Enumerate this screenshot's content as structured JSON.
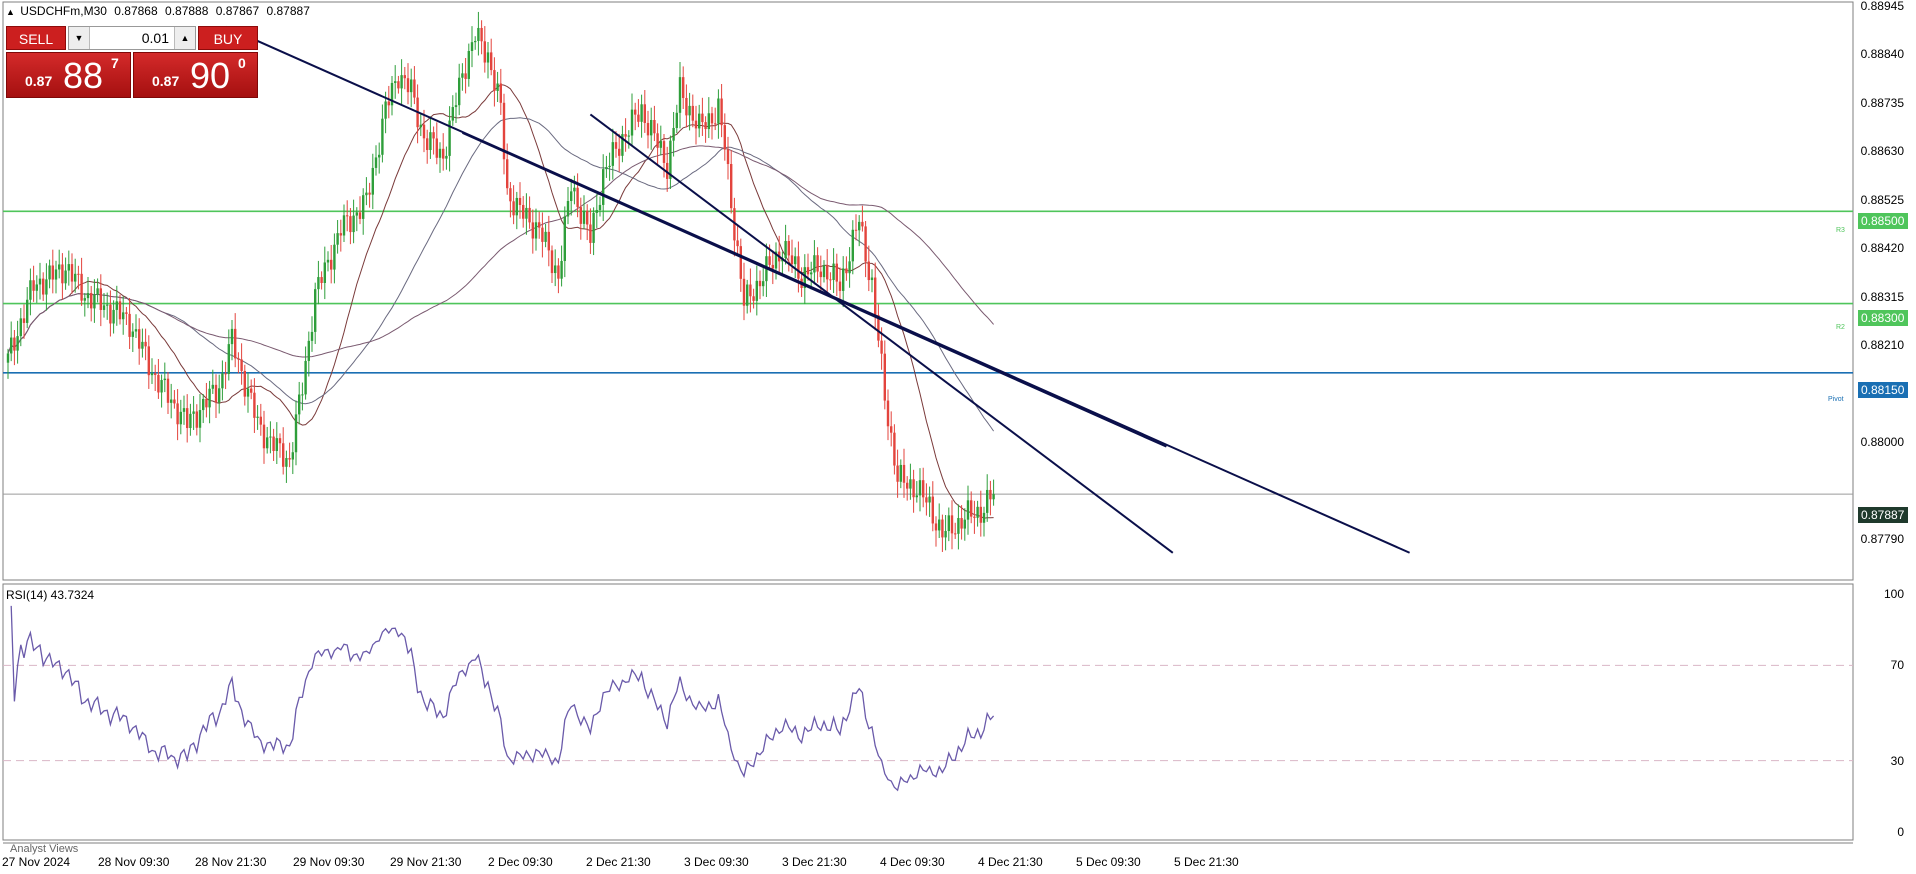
{
  "header": {
    "symbol": "USDCHFm,M30",
    "quotes": [
      "0.87868",
      "0.87888",
      "0.87867",
      "0.87887"
    ]
  },
  "trade_panel": {
    "sell_label": "SELL",
    "buy_label": "BUY",
    "lot": "0.01",
    "sell_prefix": "0.87",
    "sell_big": "88",
    "sell_sup": "7",
    "buy_prefix": "0.87",
    "buy_big": "90",
    "buy_sup": "0"
  },
  "rsi": {
    "label": "RSI(14) 43.7324"
  },
  "analyst_label": "Analyst Views",
  "chart_data": [
    {
      "type": "candlestick",
      "symbol": "USDCHFm",
      "timeframe": "M30",
      "ylim": [
        0.8774,
        0.88945
      ],
      "y_ticks": [
        "0.88945",
        "0.88840",
        "0.88735",
        "0.88630",
        "0.88525",
        "0.88420",
        "0.88315",
        "0.88210",
        "0.88105",
        "0.88000",
        "0.87790"
      ],
      "x_tick_labels": [
        "27 Nov 2024",
        "28 Nov 09:30",
        "28 Nov 21:30",
        "29 Nov 09:30",
        "29 Nov 21:30",
        "2 Dec 09:30",
        "2 Dec 21:30",
        "3 Dec 09:30",
        "3 Dec 21:30",
        "4 Dec 09:30",
        "4 Dec 21:30",
        "5 Dec 09:30",
        "5 Dec 21:30"
      ],
      "close_anchor_points": [
        [
          0,
          0.8818
        ],
        [
          4,
          0.8826
        ],
        [
          8,
          0.8834
        ],
        [
          14,
          0.8836
        ],
        [
          18,
          0.8838
        ],
        [
          24,
          0.8832
        ],
        [
          34,
          0.8828
        ],
        [
          38,
          0.8826
        ],
        [
          46,
          0.8814
        ],
        [
          56,
          0.8804
        ],
        [
          66,
          0.8812
        ],
        [
          70,
          0.8822
        ],
        [
          78,
          0.8804
        ],
        [
          82,
          0.88
        ],
        [
          88,
          0.8796
        ],
        [
          92,
          0.8812
        ],
        [
          96,
          0.8832
        ],
        [
          104,
          0.8846
        ],
        [
          112,
          0.8852
        ],
        [
          118,
          0.8872
        ],
        [
          122,
          0.888
        ],
        [
          126,
          0.8876
        ],
        [
          130,
          0.8866
        ],
        [
          136,
          0.8862
        ],
        [
          142,
          0.888
        ],
        [
          146,
          0.8888
        ],
        [
          150,
          0.8884
        ],
        [
          154,
          0.8872
        ],
        [
          156,
          0.8854
        ],
        [
          160,
          0.885
        ],
        [
          166,
          0.8846
        ],
        [
          172,
          0.8836
        ],
        [
          176,
          0.8856
        ],
        [
          182,
          0.8844
        ],
        [
          186,
          0.8858
        ],
        [
          192,
          0.8866
        ],
        [
          198,
          0.8872
        ],
        [
          206,
          0.886
        ],
        [
          210,
          0.8876
        ],
        [
          216,
          0.8868
        ],
        [
          222,
          0.8872
        ],
        [
          224,
          0.8864
        ],
        [
          226,
          0.8852
        ],
        [
          230,
          0.883
        ],
        [
          236,
          0.8836
        ],
        [
          242,
          0.8842
        ],
        [
          248,
          0.8836
        ],
        [
          254,
          0.8838
        ],
        [
          260,
          0.8834
        ],
        [
          266,
          0.8848
        ],
        [
          270,
          0.8834
        ],
        [
          274,
          0.881
        ],
        [
          278,
          0.8792
        ],
        [
          284,
          0.879
        ],
        [
          288,
          0.8786
        ],
        [
          292,
          0.878
        ],
        [
          296,
          0.8782
        ],
        [
          300,
          0.8784
        ],
        [
          304,
          0.8785
        ],
        [
          308,
          0.87887
        ]
      ],
      "price_lines": [
        {
          "label": "R3",
          "price": "0.88500",
          "color": "#4fc55b"
        },
        {
          "label": "R2",
          "price": "0.88300",
          "color": "#4fc55b"
        },
        {
          "label": "Pivot",
          "price": "0.88150",
          "color": "#1a6fb3"
        }
      ],
      "current_price": "0.87887",
      "channel_lines": [
        {
          "from": [
            68,
            0.889
          ],
          "to": [
            438,
            0.8776
          ]
        },
        {
          "from": [
            142,
            0.8867
          ],
          "to": [
            362,
            0.8799
          ]
        },
        {
          "from": [
            182,
            0.8871
          ],
          "to": [
            364,
            0.8776
          ]
        }
      ],
      "moving_averages": [
        {
          "color": "#7a3a3a",
          "period": 20
        },
        {
          "color": "#6a6a80",
          "period": 50
        },
        {
          "color": "#7a5a70",
          "period": 100
        }
      ]
    },
    {
      "type": "line",
      "name": "RSI(14)",
      "ylim": [
        0,
        100
      ],
      "y_ticks": [
        "100",
        "70",
        "30",
        "0"
      ],
      "levels": [
        70,
        30
      ],
      "last_value": 43.7324,
      "color": "#6a5aaa"
    }
  ]
}
